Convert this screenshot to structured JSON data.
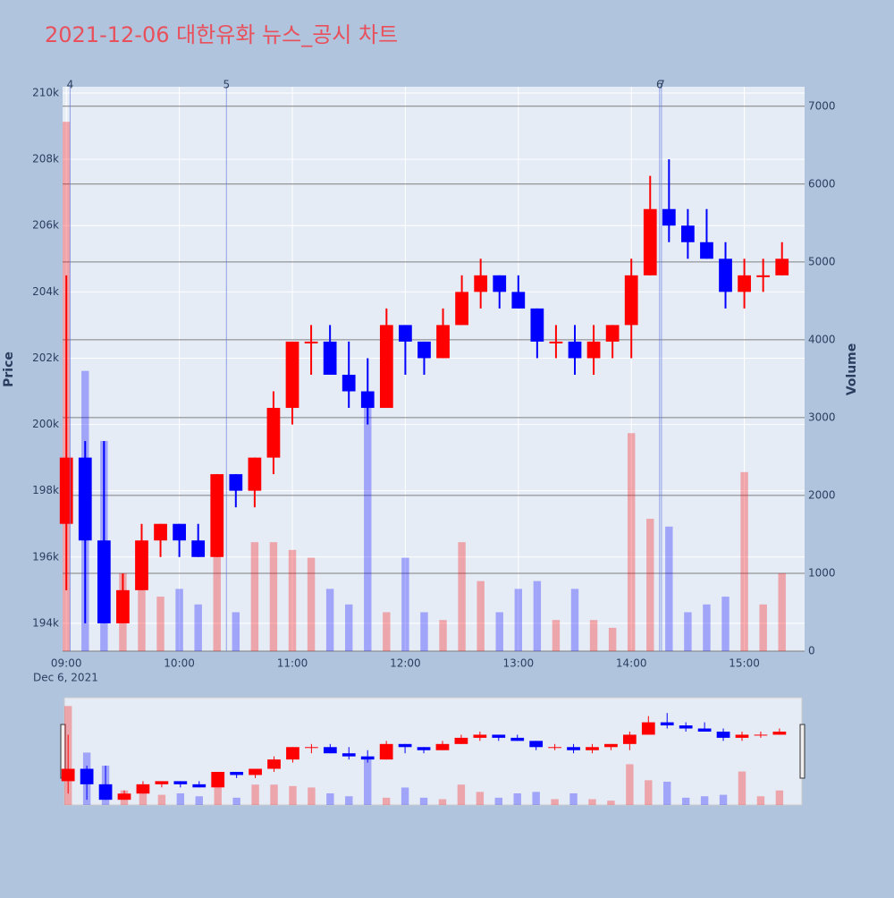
{
  "chart_data": {
    "type": "candlestick",
    "title": "2021-12-06 대한유화 뉴스_공시 차트",
    "y_label": "Price",
    "y2_label": "Volume",
    "x_date_label": "Dec 6, 2021",
    "increasing_color": "#ff0000",
    "decreasing_color": "#0000ff",
    "x": [
      "09:00",
      "09:10",
      "09:20",
      "09:30",
      "09:40",
      "09:50",
      "10:00",
      "10:10",
      "10:20",
      "10:30",
      "10:40",
      "10:50",
      "11:00",
      "11:10",
      "11:20",
      "11:30",
      "11:40",
      "11:50",
      "12:00",
      "12:10",
      "12:20",
      "12:30",
      "12:40",
      "12:50",
      "13:00",
      "13:10",
      "13:20",
      "13:30",
      "13:40",
      "13:50",
      "14:00",
      "14:10",
      "14:20",
      "14:30",
      "14:40",
      "14:50",
      "15:00",
      "15:10",
      "15:20"
    ],
    "open": [
      197000,
      199000,
      196500,
      194000,
      195000,
      196500,
      197000,
      196500,
      196000,
      198500,
      198000,
      199000,
      200500,
      202500,
      202500,
      201500,
      201000,
      200500,
      203000,
      202500,
      202000,
      203000,
      204000,
      204500,
      204000,
      203500,
      202500,
      202500,
      202000,
      202500,
      203000,
      204500,
      206500,
      206000,
      205500,
      205000,
      204000,
      204500,
      204500
    ],
    "high": [
      204500,
      199500,
      199500,
      195500,
      197000,
      197000,
      197000,
      197000,
      198500,
      198500,
      199000,
      201000,
      202500,
      203000,
      203000,
      202500,
      202000,
      203500,
      203000,
      202500,
      203500,
      204500,
      205000,
      204500,
      204500,
      203500,
      203000,
      203000,
      203000,
      203000,
      205000,
      207500,
      208000,
      206500,
      206500,
      205500,
      205000,
      205000,
      205500
    ],
    "low": [
      195000,
      194000,
      194000,
      194000,
      195000,
      196000,
      196000,
      196000,
      196000,
      197500,
      197500,
      198500,
      200000,
      201500,
      201500,
      200500,
      200000,
      200500,
      201500,
      201500,
      202000,
      203000,
      203500,
      203500,
      203500,
      202000,
      202000,
      201500,
      201500,
      202000,
      202000,
      204500,
      205500,
      205000,
      205000,
      203500,
      203500,
      204000,
      204500
    ],
    "close": [
      199000,
      196500,
      194000,
      195000,
      196500,
      197000,
      196500,
      196000,
      198500,
      198000,
      199000,
      200500,
      202500,
      202500,
      201500,
      201000,
      200500,
      203000,
      202500,
      202000,
      203000,
      204000,
      204500,
      204000,
      203500,
      202500,
      202500,
      202000,
      202500,
      203000,
      204500,
      206500,
      206000,
      205500,
      205000,
      204000,
      204500,
      204500,
      205000
    ],
    "volume": [
      6800,
      3600,
      2700,
      1000,
      1200,
      700,
      800,
      600,
      1400,
      500,
      1400,
      1400,
      1300,
      1200,
      800,
      600,
      3200,
      500,
      1200,
      500,
      400,
      1400,
      900,
      500,
      800,
      900,
      400,
      800,
      400,
      300,
      2800,
      1700,
      1600,
      500,
      600,
      700,
      2300,
      600,
      1000
    ],
    "xlim": [
      "08:58",
      "15:32"
    ],
    "xticks": [
      "09:00",
      "10:00",
      "11:00",
      "12:00",
      "13:00",
      "14:00",
      "15:00"
    ],
    "ylim": [
      193160,
      210190
    ],
    "yticks": [
      {
        "value": 194000,
        "label": "194k"
      },
      {
        "value": 196000,
        "label": "196k"
      },
      {
        "value": 198000,
        "label": "198k"
      },
      {
        "value": 200000,
        "label": "200k"
      },
      {
        "value": 202000,
        "label": "202k"
      },
      {
        "value": 204000,
        "label": "204k"
      },
      {
        "value": 206000,
        "label": "206k"
      },
      {
        "value": 208000,
        "label": "208k"
      },
      {
        "value": 210000,
        "label": "210k"
      }
    ],
    "y2lim": [
      0,
      7250
    ],
    "y2ticks": [
      0,
      1000,
      2000,
      3000,
      4000,
      5000,
      6000,
      7000
    ],
    "markers": [
      {
        "x": "09:02",
        "label": "4"
      },
      {
        "x": "10:25",
        "label": "5"
      },
      {
        "x": "14:15",
        "label": "6"
      },
      {
        "x": "14:16",
        "label": "7"
      }
    ],
    "grid": true
  }
}
